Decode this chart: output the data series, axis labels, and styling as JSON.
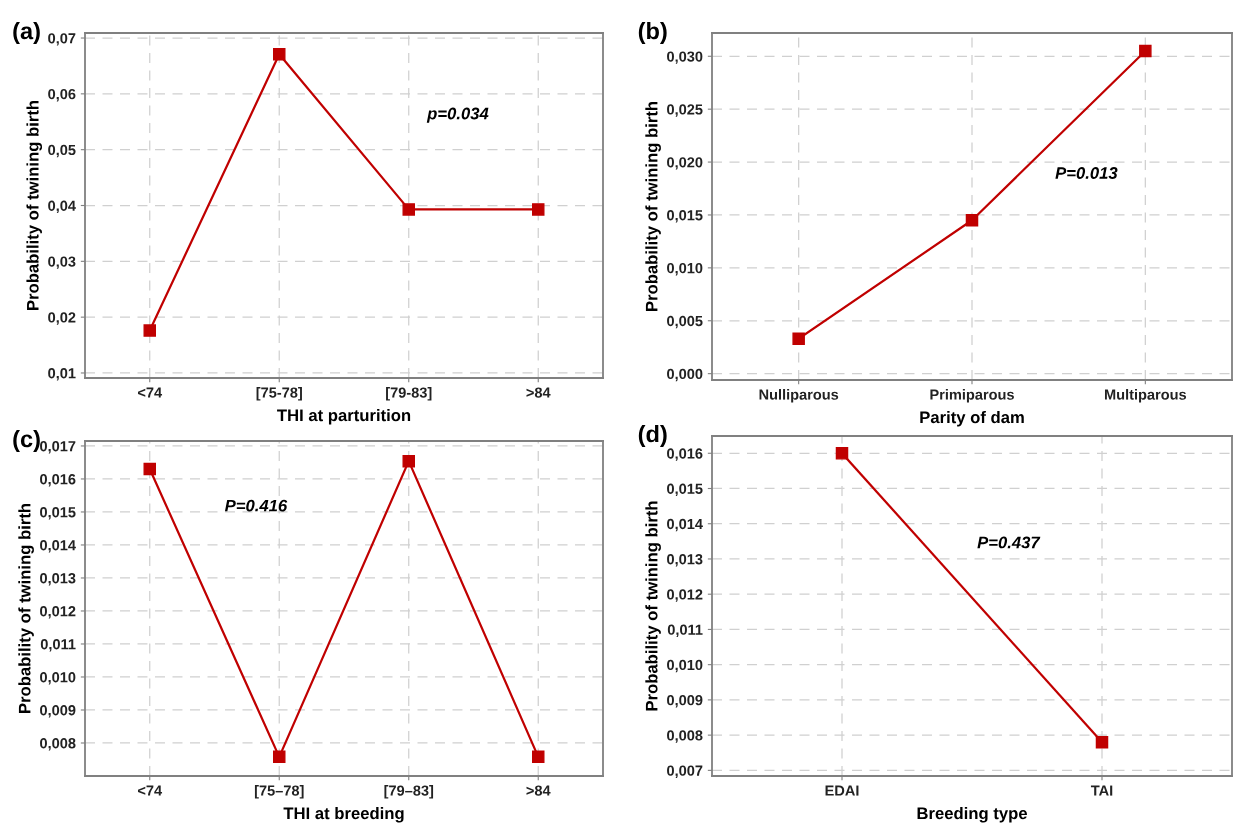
{
  "chart_data": [
    {
      "type": "line",
      "title": "(a)",
      "xlabel": "THI at parturition",
      "ylabel": "Probability of twining birth",
      "annotations": [
        "p=0.034"
      ],
      "categories": [
        "<74",
        "[75-78]",
        "[79-83]",
        ">84"
      ],
      "series": [
        {
          "color": "#c00000",
          "values": [
            0.0176,
            0.0671,
            0.0393,
            0.0393
          ]
        }
      ],
      "ylim": [
        0.0091,
        0.0709
      ],
      "yticks": [
        {
          "value": 0.01,
          "label": "0,01"
        },
        {
          "value": 0.02,
          "label": "0,02"
        },
        {
          "value": 0.03,
          "label": "0,03"
        },
        {
          "value": 0.04,
          "label": "0,04"
        },
        {
          "value": 0.05,
          "label": "0,05"
        },
        {
          "value": 0.06,
          "label": "0,06"
        },
        {
          "value": 0.07,
          "label": "0,07"
        }
      ],
      "grid": true,
      "marker": "square",
      "line_style": "solid"
    },
    {
      "type": "line",
      "title": "(b)",
      "xlabel": "Parity of dam",
      "ylabel": "Probability of twining birth",
      "annotations": [
        "P=0.013"
      ],
      "categories": [
        "Nulliparous",
        "Primiparous",
        "Multiparous"
      ],
      "series": [
        {
          "color": "#c00000",
          "values": [
            0.0033,
            0.0145,
            0.0305
          ]
        }
      ],
      "ylim": [
        -0.0006,
        0.0322
      ],
      "yticks": [
        {
          "value": 0.0,
          "label": "0,000"
        },
        {
          "value": 0.005,
          "label": "0,005"
        },
        {
          "value": 0.01,
          "label": "0,010"
        },
        {
          "value": 0.015,
          "label": "0,015"
        },
        {
          "value": 0.02,
          "label": "0,020"
        },
        {
          "value": 0.025,
          "label": "0,025"
        },
        {
          "value": 0.03,
          "label": "0,030"
        }
      ],
      "grid": true,
      "marker": "square",
      "line_style": "solid"
    },
    {
      "type": "line",
      "title": "(c)",
      "xlabel": "THI at breeding",
      "ylabel": "Probability of twining birth",
      "annotations": [
        "P=0.416"
      ],
      "categories": [
        "<74",
        "[75–78]",
        "[79–83]",
        ">84"
      ],
      "series": [
        {
          "color": "#c00000",
          "values": [
            0.0163,
            0.00758,
            0.01654,
            0.00758
          ]
        }
      ],
      "ylim": [
        0.007,
        0.01715
      ],
      "yticks": [
        {
          "value": 0.008,
          "label": "0,008"
        },
        {
          "value": 0.009,
          "label": "0,009"
        },
        {
          "value": 0.01,
          "label": "0,010"
        },
        {
          "value": 0.011,
          "label": "0,011"
        },
        {
          "value": 0.012,
          "label": "0,012"
        },
        {
          "value": 0.013,
          "label": "0,013"
        },
        {
          "value": 0.014,
          "label": "0,014"
        },
        {
          "value": 0.015,
          "label": "0,015"
        },
        {
          "value": 0.016,
          "label": "0,016"
        },
        {
          "value": 0.017,
          "label": "0,017"
        }
      ],
      "grid": true,
      "marker": "square",
      "line_style": "solid"
    },
    {
      "type": "line",
      "title": "(d)",
      "xlabel": "Breeding type",
      "ylabel": "Probability of twining birth",
      "annotations": [
        "P=0.437"
      ],
      "categories": [
        "EDAI",
        "TAI"
      ],
      "series": [
        {
          "color": "#c00000",
          "values": [
            0.016,
            0.0078
          ]
        }
      ],
      "ylim": [
        0.00684,
        0.01649
      ],
      "yticks": [
        {
          "value": 0.007,
          "label": "0,007"
        },
        {
          "value": 0.008,
          "label": "0,008"
        },
        {
          "value": 0.009,
          "label": "0,009"
        },
        {
          "value": 0.01,
          "label": "0,010"
        },
        {
          "value": 0.011,
          "label": "0,011"
        },
        {
          "value": 0.012,
          "label": "0,012"
        },
        {
          "value": 0.013,
          "label": "0,013"
        },
        {
          "value": 0.014,
          "label": "0,014"
        },
        {
          "value": 0.015,
          "label": "0,015"
        },
        {
          "value": 0.016,
          "label": "0,016"
        }
      ],
      "grid": true,
      "marker": "square",
      "line_style": "solid"
    }
  ]
}
